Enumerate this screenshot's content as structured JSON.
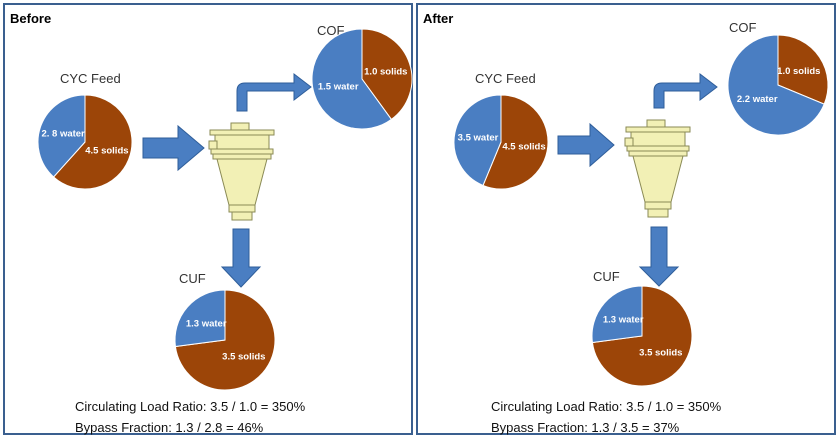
{
  "colors": {
    "water": "#4a7ec2",
    "solids": "#9c4508",
    "arrow": "#4a7ec2",
    "cyclone": "#f2f0b5",
    "cyclone_stroke": "#8a8a55"
  },
  "panels": [
    {
      "title": "Before",
      "feed": {
        "label": "CYC Feed",
        "water_label": "2. 8 water",
        "solids_label": "4.5 solids",
        "water": 2.8,
        "solids": 4.5
      },
      "cof": {
        "label": "COF",
        "water_label": "1.5 water",
        "solids_label": "1.0 solids",
        "water": 1.5,
        "solids": 1.0
      },
      "cuf": {
        "label": "CUF",
        "water_label": "1.3 water",
        "solids_label": "3.5 solids",
        "water": 1.3,
        "solids": 3.5
      },
      "clr": "Circulating Load Ratio: 3.5 / 1.0 = 350%",
      "bypass": "Bypass Fraction: 1.3 / 2.8 = 46%"
    },
    {
      "title": "After",
      "feed": {
        "label": "CYC Feed",
        "water_label": "3.5 water",
        "solids_label": "4.5 solids",
        "water": 3.5,
        "solids": 4.5
      },
      "cof": {
        "label": "COF",
        "water_label": "2.2 water",
        "solids_label": "1.0 solids",
        "water": 2.2,
        "solids": 1.0
      },
      "cuf": {
        "label": "CUF",
        "water_label": "1.3 water",
        "solids_label": "3.5 solids",
        "water": 1.3,
        "solids": 3.5
      },
      "clr": "Circulating Load Ratio: 3.5 / 1.0 = 350%",
      "bypass": "Bypass Fraction: 1.3 / 3.5 = 37%"
    }
  ]
}
